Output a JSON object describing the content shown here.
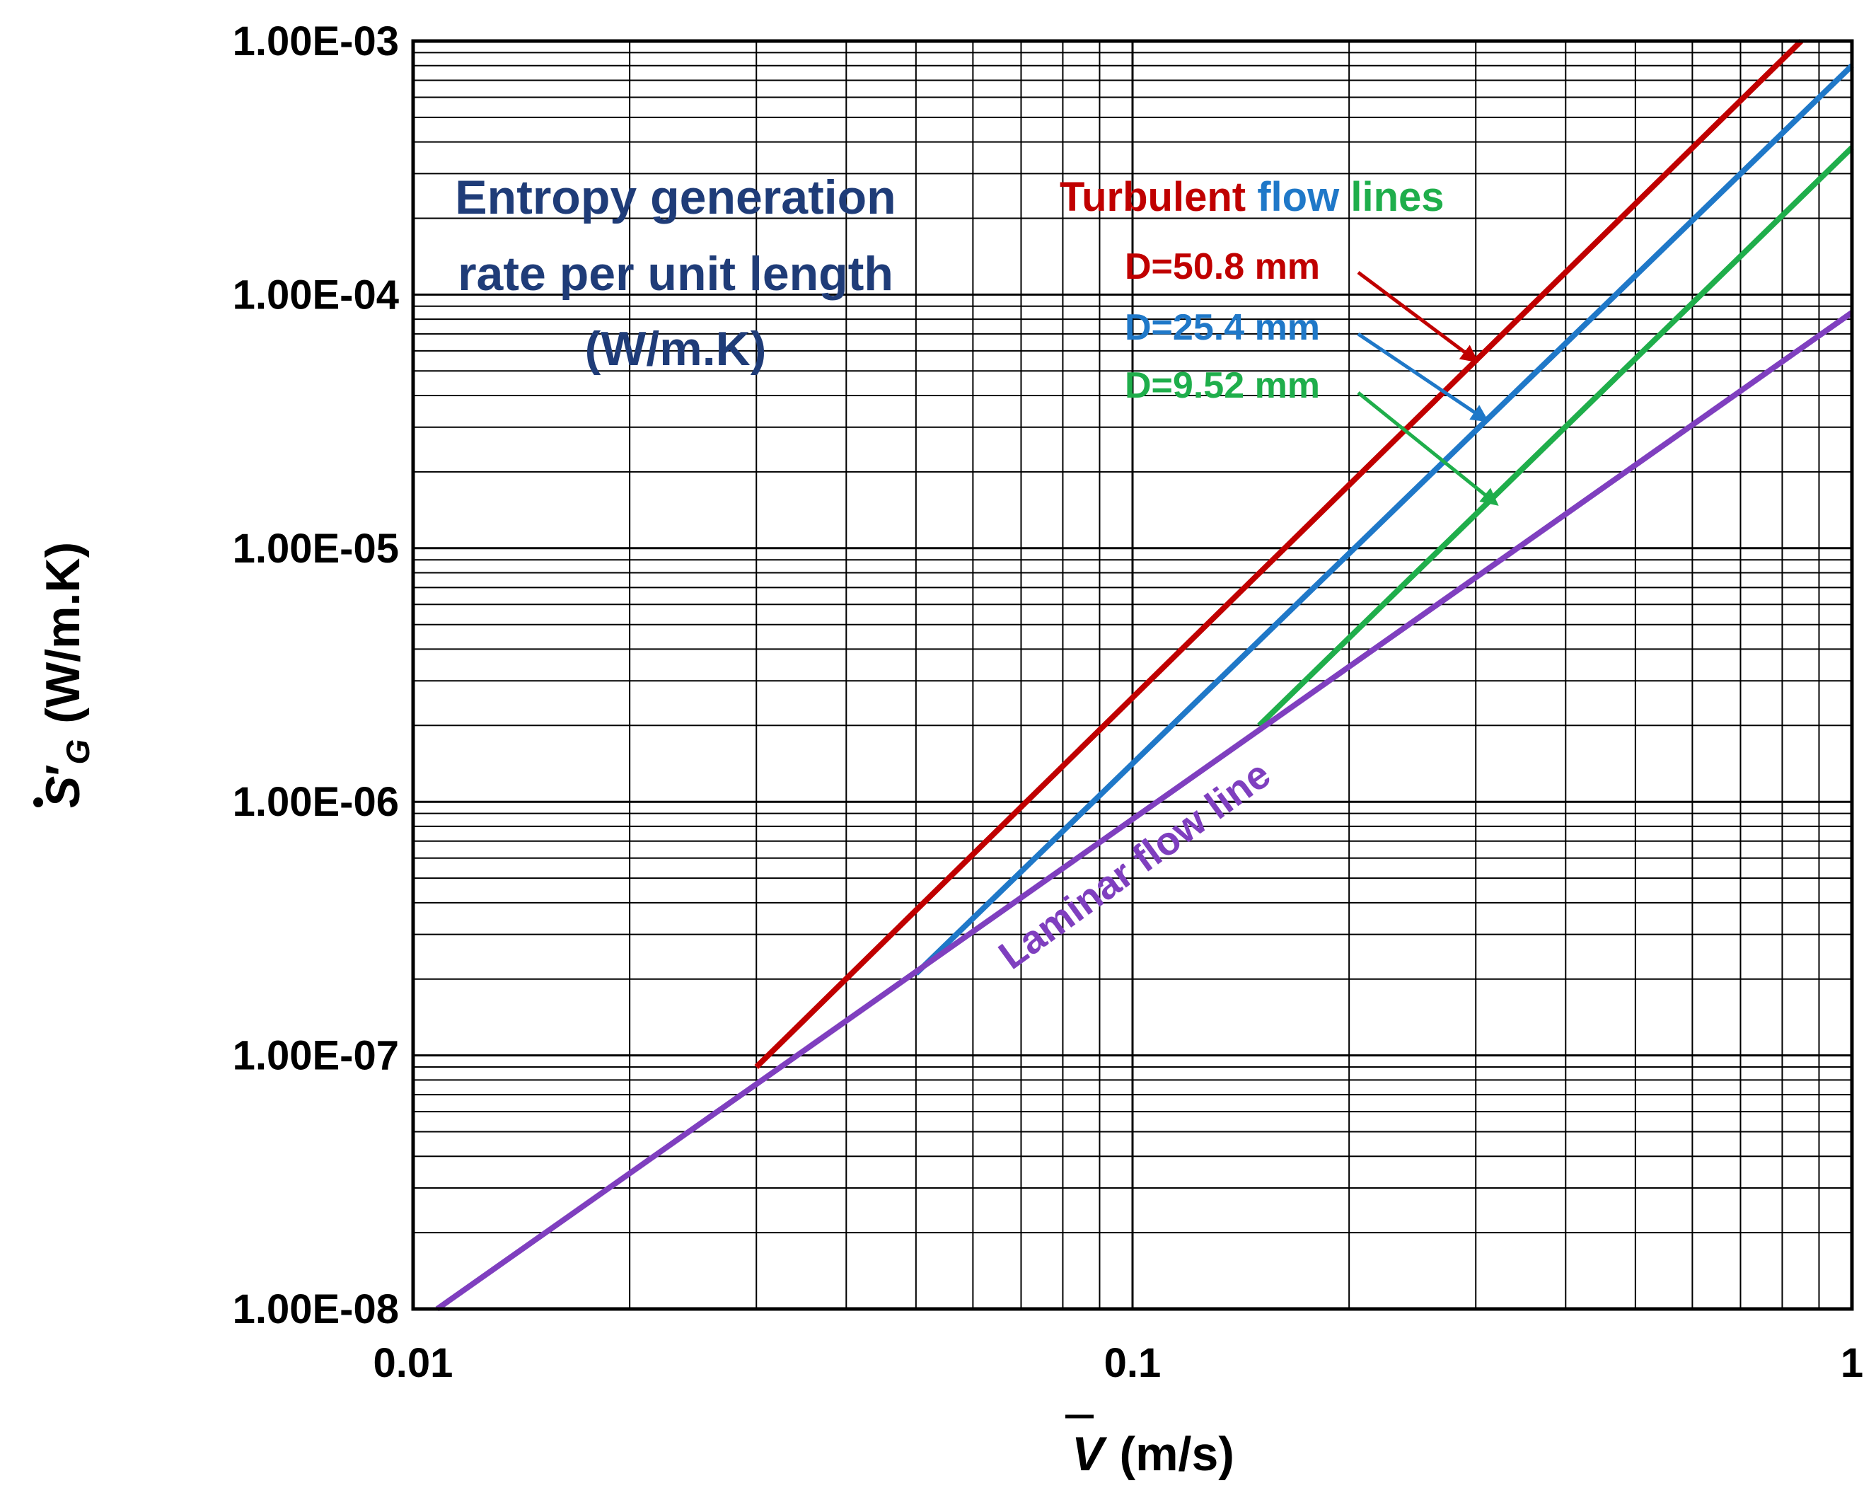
{
  "chart_data": {
    "type": "line",
    "xscale": "log",
    "yscale": "log",
    "xlim": [
      0.01,
      1
    ],
    "ylim": [
      1e-08,
      0.001
    ],
    "grid": true,
    "x_ticks": [
      "0.01",
      "0.1",
      "1"
    ],
    "y_ticks": [
      "1.00E-08",
      "1.00E-07",
      "1.00E-06",
      "1.00E-05",
      "1.00E-04",
      "1.00E-03"
    ],
    "xlabel": {
      "symbol": "V",
      "unit": "(m/s)"
    },
    "ylabel": {
      "symbol": "S",
      "subscript": "G",
      "unit": "(W/m.K)"
    },
    "title_lines": [
      "Entropy generation",
      "rate per unit length",
      "(W/m.K)"
    ],
    "heading": {
      "word1": "Turbulent",
      "word2": "flow",
      "word3": "lines"
    },
    "series": [
      {
        "name": "D=50.8 mm",
        "color": "#c00000",
        "x": [
          0.03,
          0.85
        ],
        "y": [
          9e-08,
          0.001
        ]
      },
      {
        "name": "D=25.4 mm",
        "color": "#1f78c8",
        "x": [
          0.05,
          1
        ],
        "y": [
          2.1e-07,
          0.0008
        ]
      },
      {
        "name": "D=9.52 mm",
        "color": "#1fae4b",
        "x": [
          0.15,
          1
        ],
        "y": [
          2e-06,
          0.00038
        ]
      },
      {
        "name": "Laminar flow line",
        "color": "#7f3fbf",
        "x": [
          0.0108,
          1
        ],
        "y": [
          1e-08,
          8.5e-05
        ]
      }
    ],
    "annotations": [
      {
        "text": "D=50.8 mm",
        "color": "#c00000",
        "arrow_to": {
          "x": 0.3,
          "y": 5.5e-05
        }
      },
      {
        "text": "D=25.4 mm",
        "color": "#1f78c8",
        "arrow_to": {
          "x": 0.31,
          "y": 3.2e-05
        }
      },
      {
        "text": "D=9.52 mm",
        "color": "#1fae4b",
        "arrow_to": {
          "x": 0.32,
          "y": 1.5e-05
        }
      },
      {
        "text": "Laminar flow line",
        "color": "#7f3fbf"
      }
    ],
    "colors": {
      "title": "#1f3c78",
      "turbulent": "#c00000",
      "flow": "#1f78c8",
      "lines": "#1fae4b"
    }
  }
}
